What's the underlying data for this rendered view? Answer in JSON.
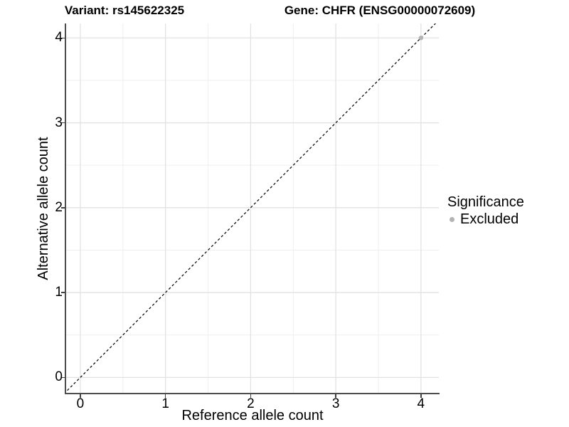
{
  "titles": {
    "variant": "Variant: rs145622325",
    "gene": "Gene: CHFR (ENSG00000072609)"
  },
  "legend": {
    "title": "Significance",
    "position": "right",
    "items": [
      {
        "label": "Excluded",
        "color": "#b4b4b4"
      }
    ]
  },
  "chart_data": {
    "type": "scatter",
    "xlabel": "Reference allele count",
    "ylabel": "Alternative allele count",
    "x_ticks": [
      0,
      1,
      2,
      3,
      4
    ],
    "y_ticks": [
      0,
      1,
      2,
      3,
      4
    ],
    "x_minor_gridlines": [
      0.5,
      1.5,
      2.5,
      3.5
    ],
    "y_minor_gridlines": [
      0.5,
      1.5,
      2.5,
      3.5
    ],
    "xlim": [
      -0.175,
      4.21
    ],
    "ylim": [
      -0.19,
      4.17
    ],
    "grid": "on",
    "identity_line": {
      "style": "dashed",
      "color": "#111111",
      "from": [
        -0.5,
        -0.5
      ],
      "to": [
        4.5,
        4.5
      ]
    },
    "series": [
      {
        "name": "Excluded",
        "color": "#b4b4b4",
        "points": [
          {
            "x": 4,
            "y": 4
          }
        ]
      }
    ]
  },
  "colors": {
    "background": "#ffffff",
    "major_grid": "#e2e2e2",
    "minor_grid": "#efefef",
    "axis_line": "#4d4d4d",
    "tick_mark": "#404040",
    "text": "#000000"
  }
}
